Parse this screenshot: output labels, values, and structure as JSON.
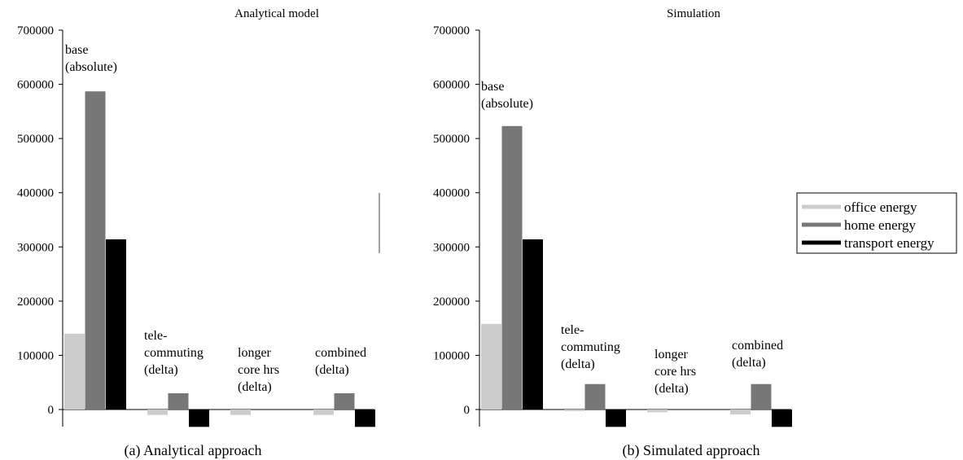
{
  "colors": {
    "office": "#cccccc",
    "home": "#777777",
    "transport": "#000000"
  },
  "legend": {
    "placement": "right",
    "items": [
      {
        "label": "office energy",
        "key": "office"
      },
      {
        "label": "home energy",
        "key": "home"
      },
      {
        "label": "transport energy",
        "key": "transport"
      }
    ]
  },
  "chart_data": [
    {
      "type": "bar",
      "title": "Analytical model",
      "caption": "(a) Analytical approach",
      "ylim": [
        0,
        700000
      ],
      "yticks": [
        "0",
        "100000",
        "200000",
        "300000",
        "400000",
        "500000",
        "600000",
        "700000"
      ],
      "grid": false,
      "categories": [
        [
          "base",
          "(absolute)"
        ],
        [
          "tele-",
          "commuting",
          "(delta)"
        ],
        [
          "longer",
          "core hrs",
          "(delta)"
        ],
        [
          "combined",
          "(delta)"
        ]
      ],
      "series": [
        {
          "name": "office energy",
          "key": "office",
          "values": [
            140000,
            -10000,
            -10000,
            -10000
          ]
        },
        {
          "name": "home energy",
          "key": "home",
          "values": [
            587000,
            30000,
            0,
            30000
          ]
        },
        {
          "name": "transport energy",
          "key": "transport",
          "values": [
            314000,
            -32000,
            0,
            -32000
          ]
        }
      ]
    },
    {
      "type": "bar",
      "title": "Simulation",
      "caption": "(b) Simulated approach",
      "ylim": [
        0,
        700000
      ],
      "yticks": [
        "0",
        "100000",
        "200000",
        "300000",
        "400000",
        "500000",
        "600000",
        "700000"
      ],
      "grid": false,
      "categories": [
        [
          "base",
          "(absolute)"
        ],
        [
          "tele-",
          "commuting",
          "(delta)"
        ],
        [
          "longer",
          "core hrs",
          "(delta)"
        ],
        [
          "combined",
          "(delta)"
        ]
      ],
      "series": [
        {
          "name": "office energy",
          "key": "office",
          "values": [
            158000,
            -3000,
            -5000,
            -9000
          ]
        },
        {
          "name": "home energy",
          "key": "home",
          "values": [
            523000,
            47000,
            0,
            47000
          ]
        },
        {
          "name": "transport energy",
          "key": "transport",
          "values": [
            314000,
            -32000,
            0,
            -32000
          ]
        }
      ]
    }
  ]
}
